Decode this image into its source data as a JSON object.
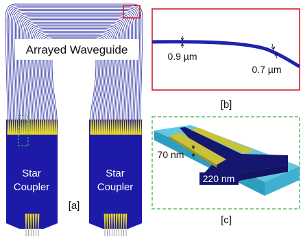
{
  "figure": {
    "panel_a": {
      "title": "Arrayed Waveguide",
      "coupler_left": [
        "Star",
        "Coupler"
      ],
      "coupler_right": [
        "Star",
        "Coupler"
      ],
      "tag": "[a]"
    },
    "panel_b": {
      "width_1": "0.9 µm",
      "width_2": "0.7 µm",
      "tag": "[b]"
    },
    "panel_c": {
      "etch_depth": "70 nm",
      "thickness": "220 nm",
      "tag": "[c]"
    },
    "colors": {
      "waveguide": "#1b1f9e",
      "coupler": "#1c1aa6",
      "taper": "#e6d92a",
      "cladding": "#4bbad6",
      "red_box": "#d0202a",
      "green_box": "#39b54a"
    }
  }
}
